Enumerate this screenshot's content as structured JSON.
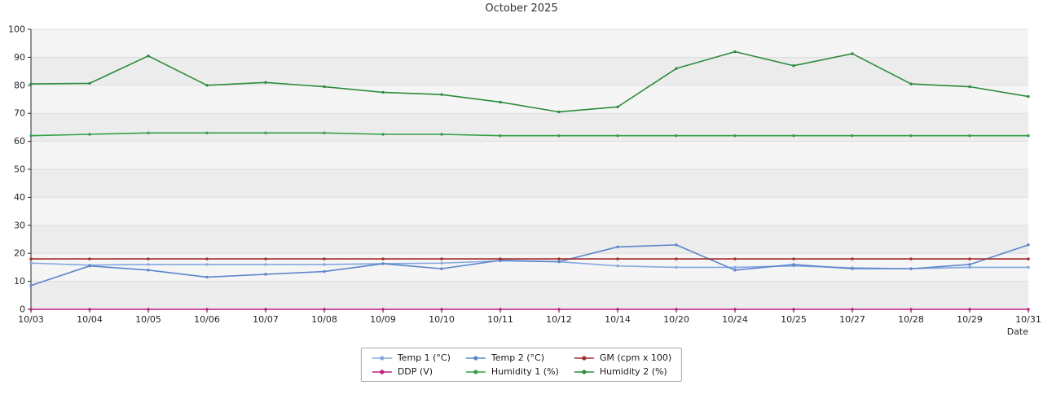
{
  "chart_data": {
    "type": "line",
    "title": "October 2025",
    "xlabel": "Date",
    "ylabel": "",
    "ylim": [
      0,
      100
    ],
    "yticks": [
      0,
      10,
      20,
      30,
      40,
      50,
      60,
      70,
      80,
      90,
      100
    ],
    "grid": true,
    "legend_position": "bottom-center",
    "legend_columns": 3,
    "categories": [
      "10/03",
      "10/04",
      "10/05",
      "10/06",
      "10/07",
      "10/08",
      "10/09",
      "10/10",
      "10/11",
      "10/12",
      "10/14",
      "10/20",
      "10/24",
      "10/25",
      "10/27",
      "10/28",
      "10/29",
      "10/31"
    ],
    "series": [
      {
        "name": "Temp 1 (°C)",
        "color": "#85a8e0",
        "values": [
          16.5,
          15.8,
          16,
          16,
          16,
          16,
          16.3,
          16.5,
          17.3,
          17,
          15.5,
          15,
          15,
          15.5,
          14.8,
          14.5,
          15,
          15
        ]
      },
      {
        "name": "Temp 2 (°C)",
        "color": "#5c85cc",
        "values": [
          8.5,
          15.5,
          14,
          11.5,
          12.5,
          13.5,
          16.3,
          14.5,
          17.5,
          17,
          22.3,
          23,
          14,
          16,
          14.5,
          14.5,
          16,
          23
        ]
      },
      {
        "name": "GM (cpm x 100)",
        "color": "#a22b2b",
        "values": [
          18,
          18,
          18,
          18,
          18,
          18,
          18,
          18,
          18,
          18,
          18,
          18,
          18,
          18,
          18,
          18,
          18,
          18
        ]
      },
      {
        "name": "DDP (V)",
        "color": "#bf1e7c",
        "values": [
          0,
          0,
          0,
          0,
          0,
          0,
          0,
          0,
          0,
          0,
          0,
          0,
          0,
          0,
          0,
          0,
          0,
          0
        ]
      },
      {
        "name": "Humidity 1 (%)",
        "color": "#35a048",
        "values": [
          62,
          62.5,
          63,
          63,
          63,
          63,
          62.5,
          62.5,
          62,
          62,
          62,
          62,
          62,
          62,
          62,
          62,
          62,
          62
        ]
      },
      {
        "name": "Humidity 2 (%)",
        "color": "#2c8c3c",
        "values": [
          80.5,
          80.7,
          90.5,
          80,
          81,
          79.5,
          77.5,
          76.7,
          74,
          70.5,
          72.3,
          86,
          92,
          87,
          91.3,
          80.5,
          79.5,
          76
        ]
      }
    ]
  },
  "colors": {
    "background": "#ffffff",
    "plot_band_light": "#f5f5f5",
    "plot_band_dark": "#ececec",
    "gridline": "#dddddd",
    "axis": "#262626",
    "title_text": "#333333",
    "tick_text": "#262626",
    "legend_border": "#a6a6a6"
  }
}
